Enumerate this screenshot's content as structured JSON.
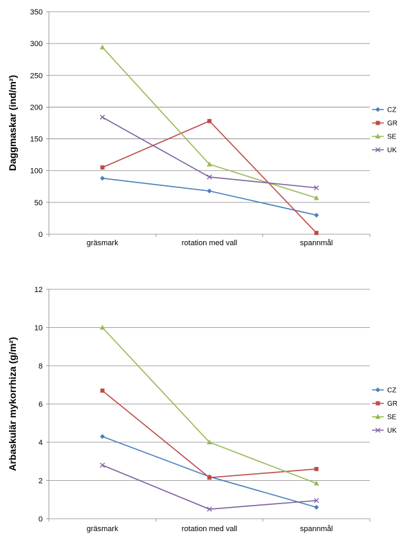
{
  "chart_data": [
    {
      "type": "line",
      "categories": [
        "gräsmark",
        "rotation med vall",
        "spannmål"
      ],
      "ylabel": "Daggmaskar (ind/m²)",
      "ylim": [
        0,
        350
      ],
      "ytick_step": 50,
      "ytick_labels": [
        "0",
        "50",
        "100",
        "150",
        "200",
        "250",
        "300",
        "350"
      ],
      "grid": true,
      "legend_position": "right",
      "series": [
        {
          "name": "CZ",
          "color": "#4a7ebb",
          "marker": "diamond",
          "values": [
            88,
            68,
            30
          ]
        },
        {
          "name": "GR",
          "color": "#be4b48",
          "marker": "square",
          "values": [
            105,
            178,
            2
          ]
        },
        {
          "name": "SE",
          "color": "#98b954",
          "marker": "triangle",
          "values": [
            294,
            110,
            57
          ]
        },
        {
          "name": "UK",
          "color": "#7d60a0",
          "marker": "x",
          "values": [
            184,
            90,
            73
          ]
        }
      ]
    },
    {
      "type": "line",
      "categories": [
        "gräsmark",
        "rotation med vall",
        "spannmål"
      ],
      "ylabel": "Arbaskulär mykorrhiza (g/m²)",
      "ylim": [
        0,
        12
      ],
      "ytick_step": 2,
      "ytick_labels": [
        "0",
        "2",
        "4",
        "6",
        "8",
        "10",
        "12"
      ],
      "grid": true,
      "legend_position": "right",
      "series": [
        {
          "name": "CZ",
          "color": "#4a7ebb",
          "marker": "diamond",
          "values": [
            4.3,
            2.2,
            0.6
          ]
        },
        {
          "name": "GR",
          "color": "#be4b48",
          "marker": "square",
          "values": [
            6.7,
            2.15,
            2.6
          ]
        },
        {
          "name": "SE",
          "color": "#98b954",
          "marker": "triangle",
          "values": [
            10.0,
            4.0,
            1.85
          ]
        },
        {
          "name": "UK",
          "color": "#7d60a0",
          "marker": "x",
          "values": [
            2.8,
            0.5,
            0.95
          ]
        }
      ]
    }
  ]
}
